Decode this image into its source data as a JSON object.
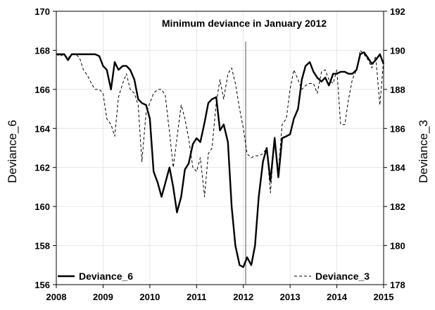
{
  "chart_data": {
    "type": "line",
    "title": "Minimum deviance in January 2012",
    "xlabel": "",
    "ylabel_left": "Deviance_6",
    "ylabel_right": "Deviance_3",
    "xlim": [
      2008,
      2015
    ],
    "ylim_left": [
      156,
      170
    ],
    "ylim_right": [
      178,
      192
    ],
    "x_ticks": [
      2008,
      2009,
      2010,
      2011,
      2012,
      2013,
      2014,
      2015
    ],
    "y_ticks_left": [
      156,
      158,
      160,
      162,
      164,
      166,
      168,
      170
    ],
    "y_ticks_right": [
      178,
      180,
      182,
      184,
      186,
      188,
      190,
      192
    ],
    "grid": true,
    "legend": {
      "placement": "bottom",
      "left_entry": "Deviance_6",
      "right_entry": "Deviance_3"
    },
    "vertical_marker_x": 2012.05,
    "series": [
      {
        "name": "Deviance_6",
        "axis": "left",
        "style": "solid",
        "color": "#000000",
        "x": [
          2008.0,
          2008.08,
          2008.17,
          2008.25,
          2008.33,
          2008.42,
          2008.5,
          2008.58,
          2008.67,
          2008.75,
          2008.83,
          2008.92,
          2009.0,
          2009.08,
          2009.17,
          2009.25,
          2009.33,
          2009.42,
          2009.5,
          2009.58,
          2009.67,
          2009.75,
          2009.83,
          2009.92,
          2010.0,
          2010.08,
          2010.17,
          2010.25,
          2010.33,
          2010.42,
          2010.5,
          2010.58,
          2010.67,
          2010.75,
          2010.83,
          2010.92,
          2011.0,
          2011.08,
          2011.17,
          2011.25,
          2011.33,
          2011.42,
          2011.5,
          2011.58,
          2011.67,
          2011.75,
          2011.83,
          2011.92,
          2012.0,
          2012.08,
          2012.17,
          2012.25,
          2012.33,
          2012.42,
          2012.5,
          2012.58,
          2012.67,
          2012.75,
          2012.83,
          2012.92,
          2013.0,
          2013.08,
          2013.17,
          2013.25,
          2013.33,
          2013.42,
          2013.5,
          2013.58,
          2013.67,
          2013.75,
          2013.83,
          2013.92,
          2014.0,
          2014.08,
          2014.17,
          2014.25,
          2014.33,
          2014.42,
          2014.5,
          2014.58,
          2014.67,
          2014.75,
          2014.83,
          2014.92,
          2015.0
        ],
        "values": [
          167.8,
          167.8,
          167.8,
          167.5,
          167.8,
          167.8,
          167.8,
          167.8,
          167.8,
          167.8,
          167.8,
          167.7,
          167.2,
          167.0,
          166.0,
          167.4,
          167.0,
          167.2,
          167.2,
          167.0,
          166.5,
          165.5,
          165.3,
          165.2,
          164.5,
          161.8,
          161.2,
          160.5,
          161.2,
          162.0,
          161.0,
          159.7,
          160.5,
          161.9,
          162.2,
          163.2,
          163.5,
          163.3,
          164.3,
          165.3,
          165.5,
          165.6,
          163.9,
          164.2,
          163.3,
          160.0,
          158.0,
          157.0,
          156.9,
          157.4,
          157.0,
          158.0,
          160.5,
          162.3,
          163.0,
          161.3,
          163.5,
          161.5,
          163.5,
          163.6,
          163.7,
          164.5,
          165.0,
          166.5,
          167.2,
          167.4,
          166.9,
          166.6,
          166.4,
          166.6,
          166.2,
          166.8,
          166.8,
          166.9,
          166.9,
          166.8,
          166.8,
          167.0,
          167.8,
          167.9,
          167.6,
          167.3,
          167.5,
          167.8,
          167.3
        ]
      },
      {
        "name": "Deviance_3",
        "axis": "right",
        "style": "dashed",
        "color": "#000000",
        "x": [
          2008.0,
          2008.08,
          2008.17,
          2008.25,
          2008.33,
          2008.42,
          2008.5,
          2008.58,
          2008.67,
          2008.75,
          2008.83,
          2008.92,
          2009.0,
          2009.08,
          2009.17,
          2009.25,
          2009.33,
          2009.42,
          2009.5,
          2009.58,
          2009.67,
          2009.75,
          2009.83,
          2009.92,
          2010.0,
          2010.08,
          2010.17,
          2010.25,
          2010.33,
          2010.42,
          2010.5,
          2010.58,
          2010.67,
          2010.75,
          2010.83,
          2010.92,
          2011.0,
          2011.08,
          2011.17,
          2011.25,
          2011.33,
          2011.42,
          2011.5,
          2011.58,
          2011.67,
          2011.75,
          2011.83,
          2011.92,
          2012.0,
          2012.08,
          2012.17,
          2012.25,
          2012.33,
          2012.42,
          2012.5,
          2012.58,
          2012.67,
          2012.75,
          2012.83,
          2012.92,
          2013.0,
          2013.08,
          2013.17,
          2013.25,
          2013.33,
          2013.42,
          2013.5,
          2013.58,
          2013.67,
          2013.75,
          2013.83,
          2013.92,
          2014.0,
          2014.08,
          2014.17,
          2014.25,
          2014.33,
          2014.42,
          2014.5,
          2014.58,
          2014.67,
          2014.75,
          2014.83,
          2014.92,
          2015.0
        ],
        "values": [
          189.8,
          189.7,
          189.8,
          189.6,
          189.8,
          189.8,
          189.6,
          189.0,
          188.7,
          188.3,
          188.0,
          188.0,
          187.8,
          186.5,
          186.2,
          185.6,
          187.6,
          188.3,
          188.8,
          188.0,
          187.8,
          187.2,
          184.3,
          186.8,
          187.3,
          187.8,
          188.0,
          188.0,
          187.7,
          185.8,
          184.0,
          185.5,
          187.2,
          186.5,
          185.5,
          184.0,
          183.8,
          184.5,
          182.5,
          184.7,
          185.0,
          187.3,
          188.5,
          187.5,
          188.8,
          189.1,
          188.3,
          187.0,
          186.0,
          184.7,
          184.5,
          184.6,
          184.6,
          184.7,
          185.0,
          182.7,
          185.6,
          183.8,
          186.2,
          186.5,
          188.0,
          189.0,
          188.5,
          188.0,
          188.2,
          188.3,
          188.3,
          187.8,
          188.9,
          189.0,
          188.5,
          188.3,
          189.0,
          186.2,
          186.2,
          187.5,
          188.5,
          189.0,
          190.0,
          189.8,
          189.5,
          189.1,
          189.7,
          187.2,
          189.5
        ]
      }
    ]
  }
}
